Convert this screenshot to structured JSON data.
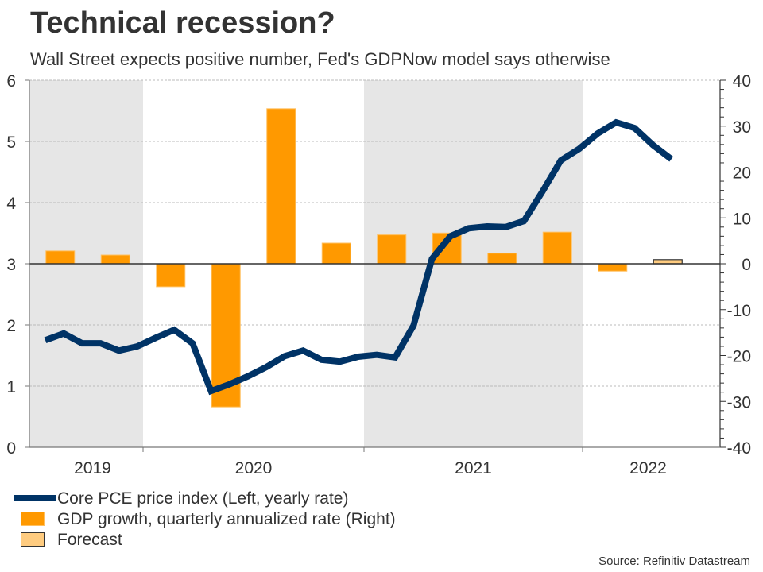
{
  "header": {
    "title": "Technical recession?",
    "subtitle": "Wall Street expects positive number, Fed's GDPNow model says otherwise"
  },
  "legend": {
    "items": [
      {
        "label": "Core PCE price index (Left, yearly rate)",
        "type": "line",
        "color": "#003366"
      },
      {
        "label": "GDP growth, quarterly annualized rate (Right)",
        "type": "bar",
        "color": "#ff9900"
      },
      {
        "label": "Forecast",
        "type": "bar",
        "color": "#ffcc80"
      }
    ]
  },
  "source": "Source: Refinitiv Datastream",
  "chart_data": {
    "type": "bar+line",
    "title": "Technical recession?",
    "subtitle": "Wall Street expects positive number, Fed's GDPNow model says otherwise",
    "xlabel": "",
    "x_tick_labels": [
      "2019",
      "2020",
      "2021",
      "2022"
    ],
    "shaded_years": [
      "2019",
      "2021"
    ],
    "left_axis": {
      "label": "Core PCE price index (yearly rate)",
      "ylim": [
        0,
        6
      ],
      "ticks": [
        "0",
        "1",
        "2",
        "3",
        "4",
        "5",
        "6"
      ]
    },
    "right_axis": {
      "label": "GDP growth, quarterly annualized rate",
      "ylim": [
        -40,
        40
      ],
      "ticks": [
        "-40",
        "-30",
        "-20",
        "-10",
        "0",
        "10",
        "20",
        "30",
        "40"
      ]
    },
    "grid": true,
    "legend_position": "bottom-left",
    "colors": {
      "line": "#003366",
      "bar": "#ff9900",
      "forecast": "#ffcc80",
      "shade": "#e6e6e6"
    },
    "series": [
      {
        "name": "Core PCE price index (Left, yearly rate)",
        "type": "line",
        "axis": "left",
        "x": [
          "2019-07",
          "2019-08",
          "2019-09",
          "2019-10",
          "2019-11",
          "2019-12",
          "2020-01",
          "2020-02",
          "2020-03",
          "2020-04",
          "2020-05",
          "2020-06",
          "2020-07",
          "2020-08",
          "2020-09",
          "2020-10",
          "2020-11",
          "2020-12",
          "2021-01",
          "2021-02",
          "2021-03",
          "2021-04",
          "2021-05",
          "2021-06",
          "2021-07",
          "2021-08",
          "2021-09",
          "2021-10",
          "2021-11",
          "2021-12",
          "2022-01",
          "2022-02",
          "2022-03",
          "2022-04",
          "2022-05"
        ],
        "values": [
          1.75,
          1.86,
          1.7,
          1.7,
          1.58,
          1.65,
          1.79,
          1.92,
          1.7,
          0.92,
          1.03,
          1.16,
          1.31,
          1.49,
          1.58,
          1.43,
          1.4,
          1.48,
          1.51,
          1.47,
          1.99,
          3.08,
          3.45,
          3.58,
          3.61,
          3.6,
          3.7,
          4.18,
          4.69,
          4.88,
          5.13,
          5.31,
          5.22,
          4.94,
          4.71
        ]
      },
      {
        "name": "GDP growth, quarterly annualized rate (Right)",
        "type": "bar",
        "axis": "right",
        "x": [
          "2019-Q3",
          "2019-Q4",
          "2020-Q1",
          "2020-Q2",
          "2020-Q3",
          "2020-Q4",
          "2021-Q1",
          "2021-Q2",
          "2021-Q3",
          "2021-Q4",
          "2022-Q1"
        ],
        "values": [
          2.8,
          1.9,
          -5.0,
          -31.2,
          33.8,
          4.5,
          6.3,
          6.7,
          2.3,
          6.9,
          -1.6
        ]
      },
      {
        "name": "Forecast",
        "type": "bar",
        "axis": "right",
        "x": [
          "2022-Q2"
        ],
        "values": [
          0.9
        ]
      }
    ]
  }
}
